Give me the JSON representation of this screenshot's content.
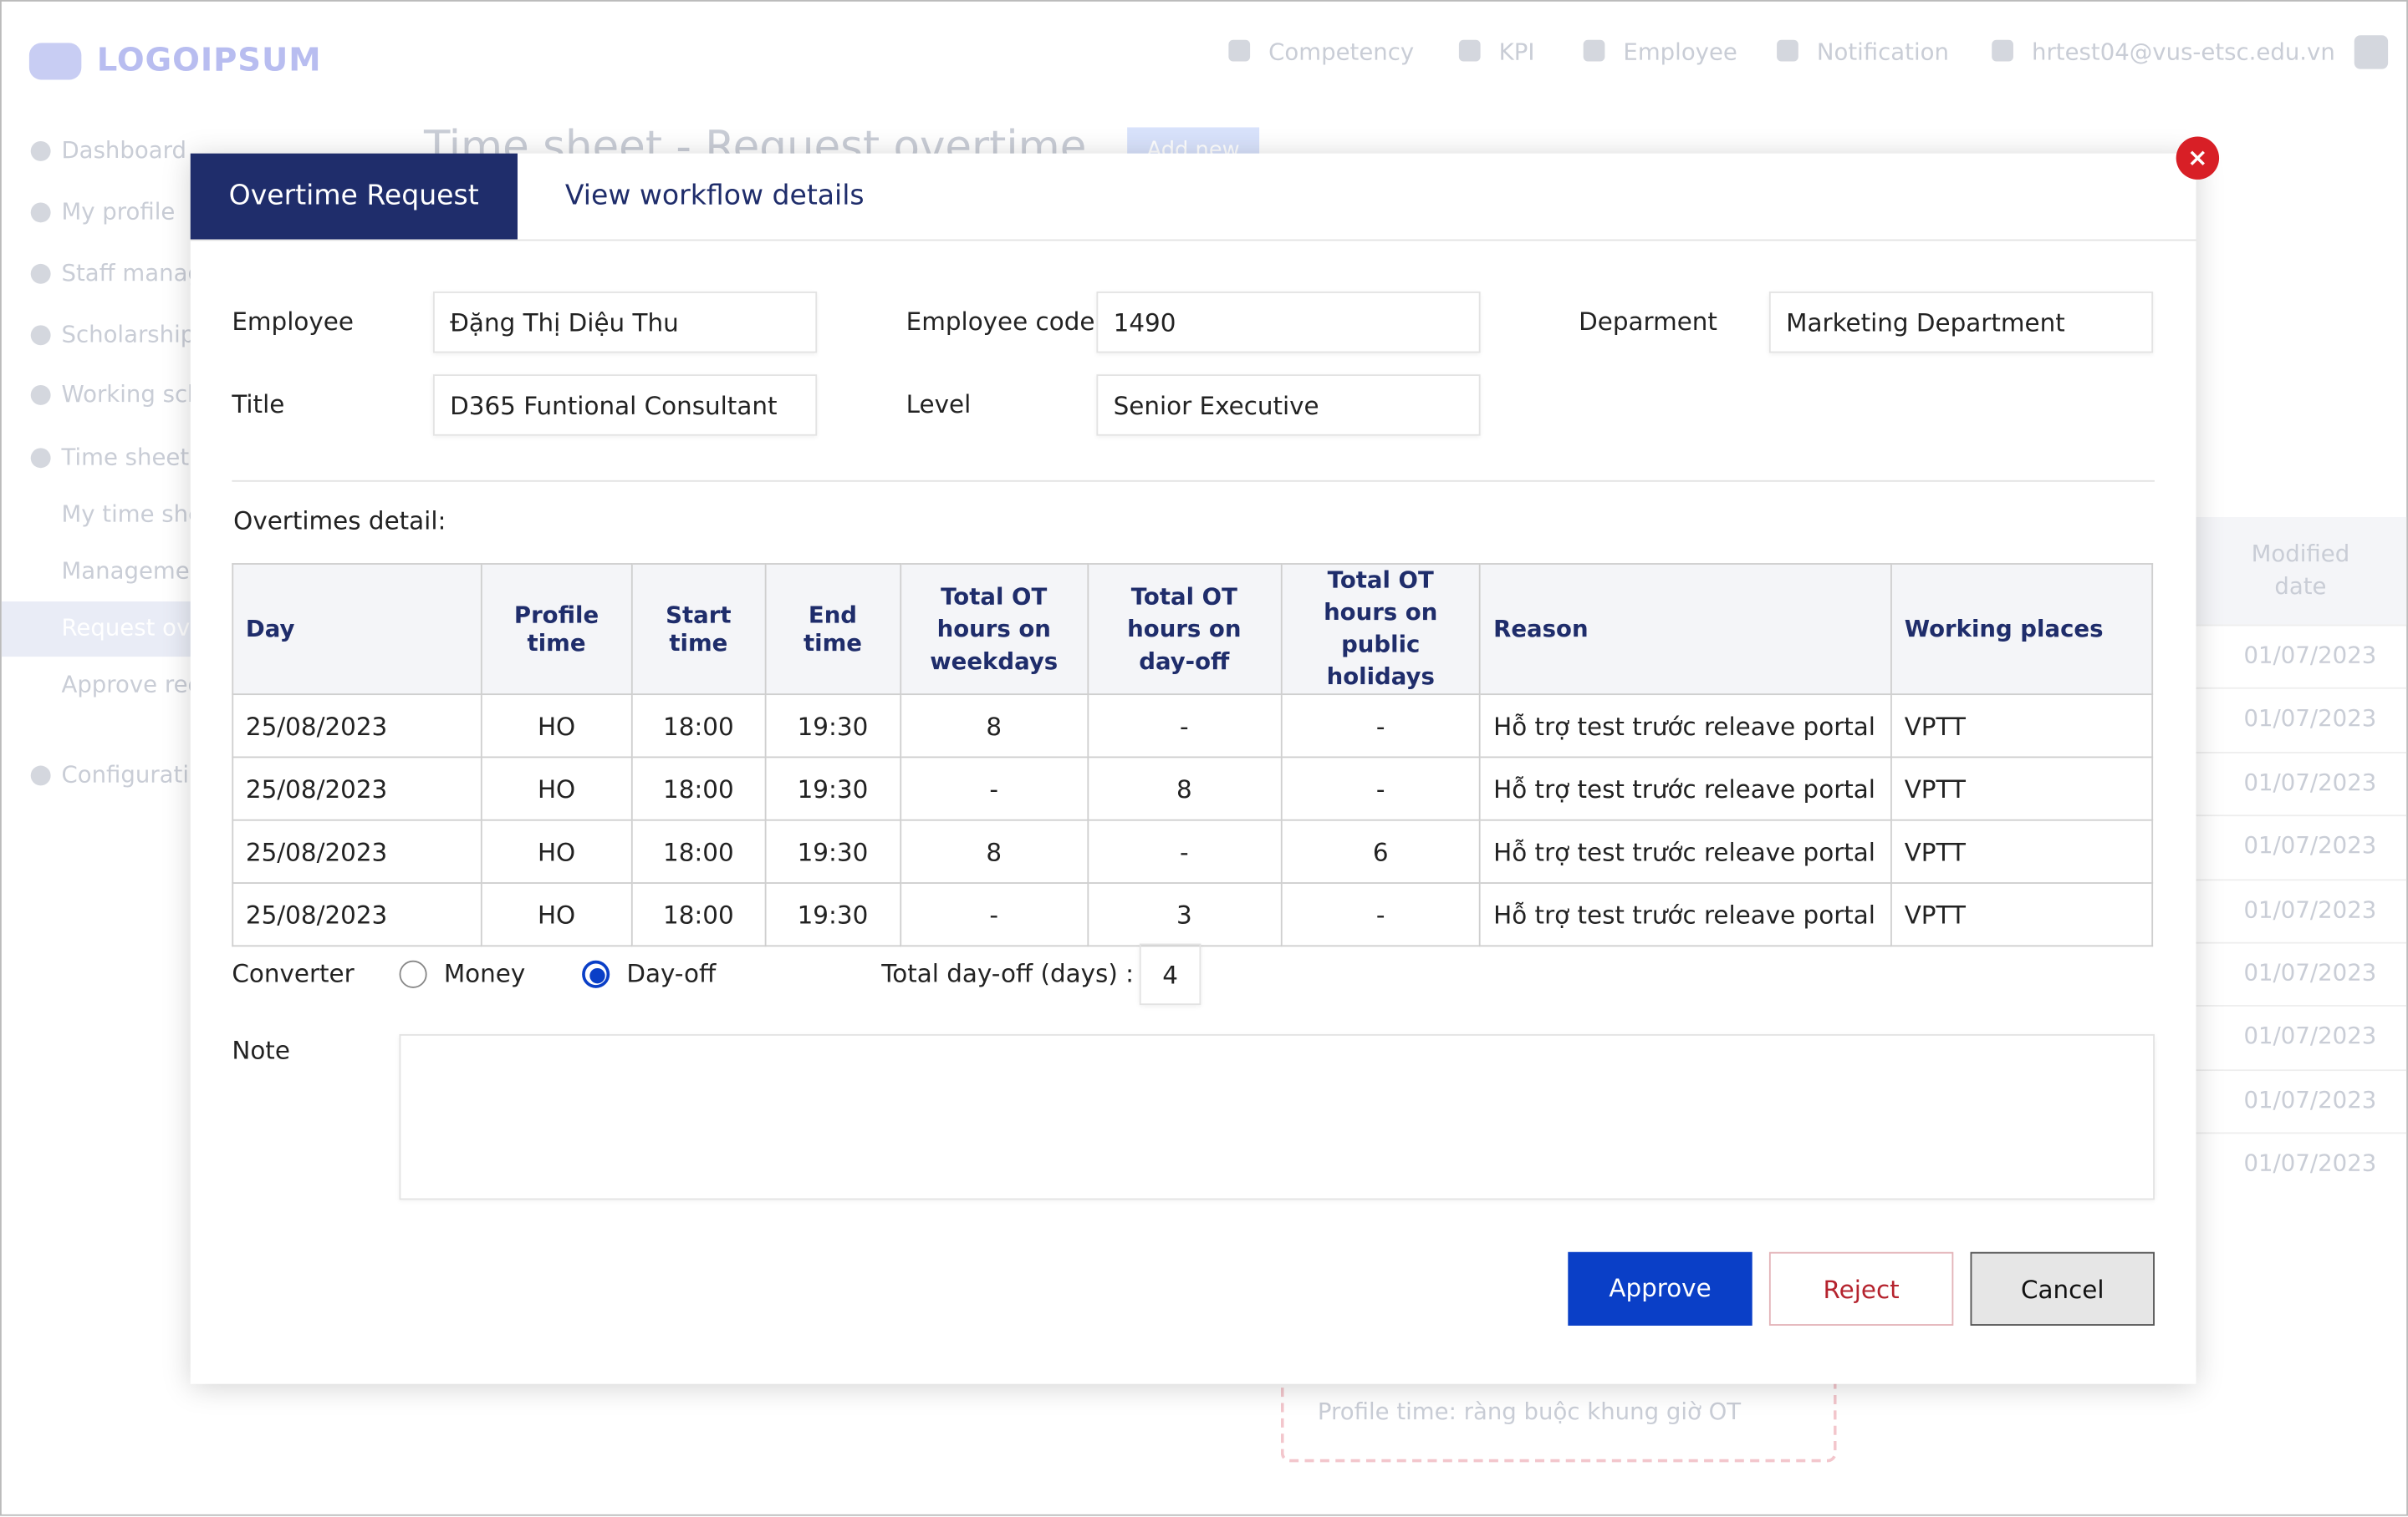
{
  "header": {
    "logo": "LOGOIPSUM",
    "nav": [
      "Competency",
      "KPI",
      "Employee",
      "Notification",
      "hrtest04@vus-etsc.edu.vn"
    ]
  },
  "sidebar": {
    "items": [
      "Dashboard",
      "My profile",
      "Staff manag",
      "Scholarship",
      "Working sch",
      "Time sheet",
      "My time she",
      "Manageme",
      "Request ove",
      "Approve req",
      "Configurati"
    ]
  },
  "background": {
    "title": "Time sheet - Request overtime",
    "add_button": "Add new",
    "column": "Modified date",
    "dates": [
      "01/07/2023",
      "01/07/2023",
      "01/07/2023",
      "01/07/2023",
      "01/07/2023",
      "01/07/2023",
      "01/07/2023",
      "01/07/2023",
      "01/07/2023"
    ],
    "hint": "Profile time: ràng buộc khung giờ OT"
  },
  "modal": {
    "tabs": [
      "Overtime Request",
      "View workflow details"
    ],
    "fields": [
      {
        "label": "Employee",
        "value": "Đặng Thị Diệu Thu"
      },
      {
        "label": "Employee code",
        "value": "1490"
      },
      {
        "label": "Deparment",
        "value": "Marketing Department"
      },
      {
        "label": "Title",
        "value": "D365 Funtional Consultant"
      },
      {
        "label": "Level",
        "value": "Senior Executive"
      }
    ],
    "section": "Overtimes detail:",
    "table": {
      "columns": [
        "Day",
        "Profile time",
        "Start time",
        "End time",
        "Total OT hours on weekdays",
        "Total OT hours on day-off",
        "Total OT hours on public holidays",
        "Reason",
        "Working places"
      ],
      "rows": [
        [
          "25/08/2023",
          "HO",
          "18:00",
          "19:30",
          "8",
          "-",
          "-",
          "Hỗ trợ test trước releave portal",
          "VPTT"
        ],
        [
          "25/08/2023",
          "HO",
          "18:00",
          "19:30",
          "-",
          "8",
          "-",
          "Hỗ trợ test trước releave portal",
          "VPTT"
        ],
        [
          "25/08/2023",
          "HO",
          "18:00",
          "19:30",
          "8",
          "-",
          "6",
          "Hỗ trợ test trước releave portal",
          "VPTT"
        ],
        [
          "25/08/2023",
          "HO",
          "18:00",
          "19:30",
          "-",
          "3",
          "-",
          "Hỗ trợ test trước releave portal",
          "VPTT"
        ]
      ]
    },
    "converter": {
      "label": "Converter",
      "options": [
        "Money",
        "Day-off"
      ],
      "selected": 1,
      "total_label": "Total day-off (days) :",
      "total": "4"
    },
    "note_label": "Note",
    "buttons": [
      "Approve",
      "Reject",
      "Cancel"
    ]
  }
}
